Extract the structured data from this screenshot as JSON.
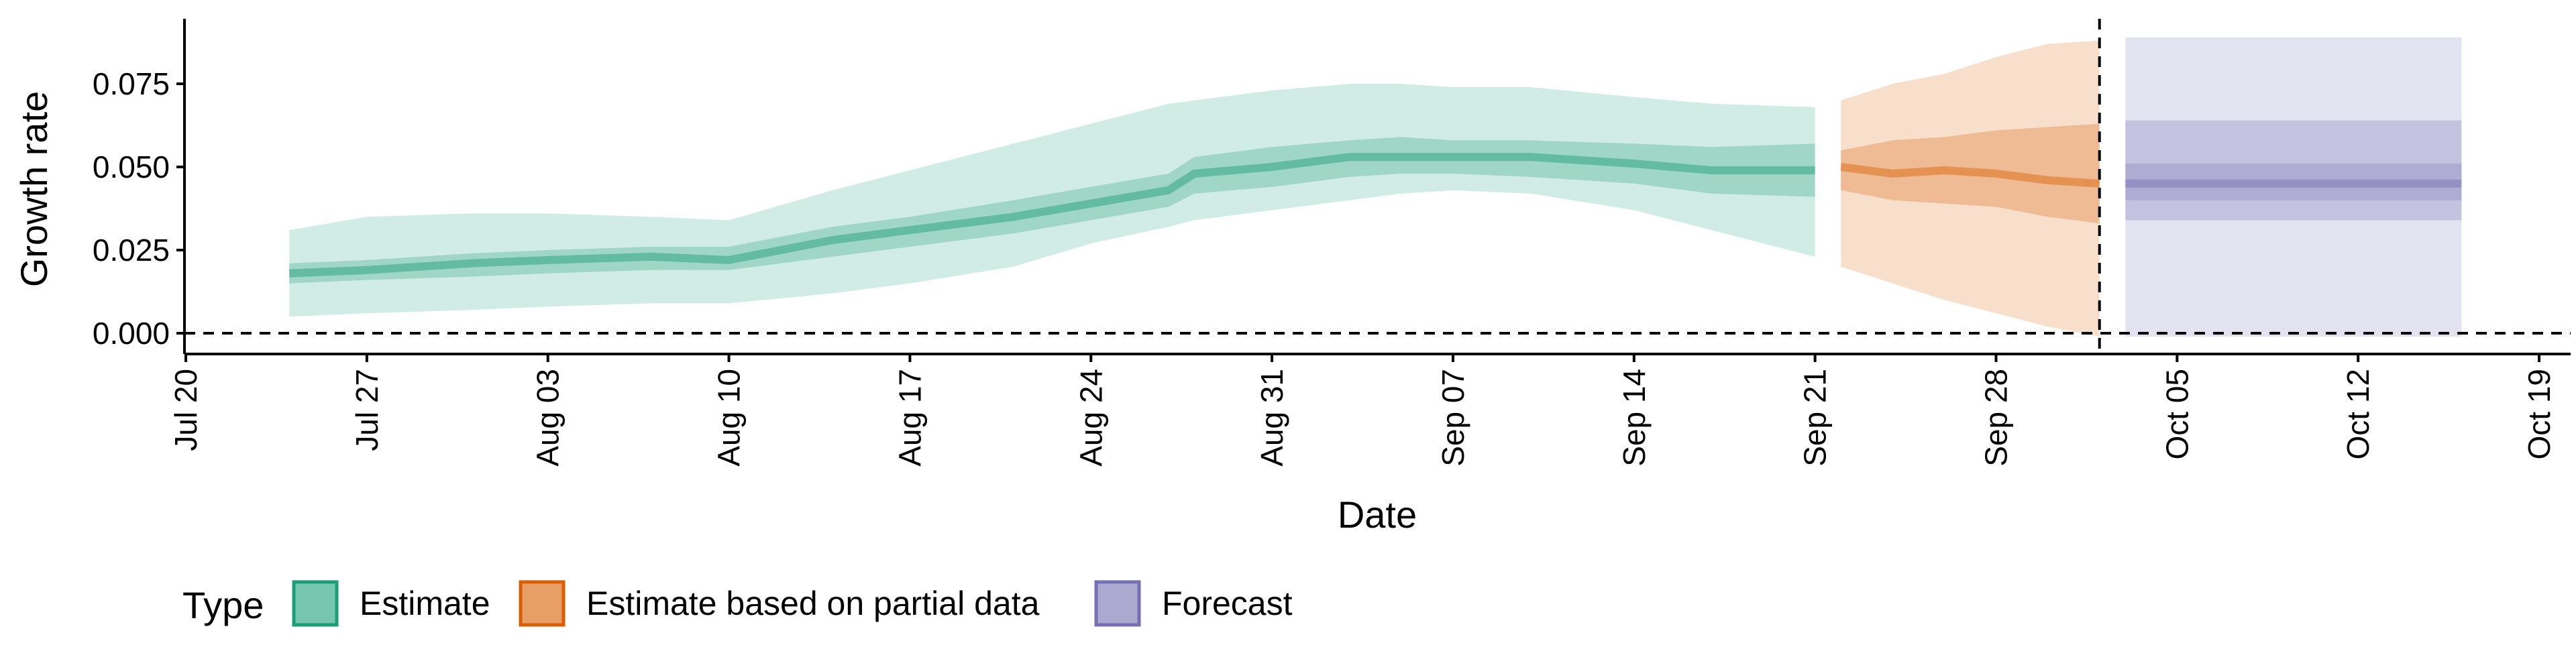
{
  "chart_data": {
    "type": "area",
    "title": "",
    "xlabel": "Date",
    "ylabel": "Growth rate",
    "x_tick_labels": [
      "Jul 20",
      "Jul 27",
      "Aug 03",
      "Aug 10",
      "Aug 17",
      "Aug 24",
      "Aug 31",
      "Sep 07",
      "Sep 14",
      "Sep 21",
      "Sep 28",
      "Oct 05",
      "Oct 12",
      "Oct 19"
    ],
    "x_ticks": [
      "2020-07-20",
      "2020-07-27",
      "2020-08-03",
      "2020-08-10",
      "2020-08-17",
      "2020-08-24",
      "2020-08-31",
      "2020-09-07",
      "2020-09-14",
      "2020-09-21",
      "2020-09-28",
      "2020-10-05",
      "2020-10-12",
      "2020-10-19"
    ],
    "y_ticks": [
      0.0,
      0.025,
      0.05,
      0.075
    ],
    "y_tick_labels": [
      "0.000",
      "0.025",
      "0.050",
      "0.075"
    ],
    "xlim": [
      "2020-07-20",
      "2020-10-20"
    ],
    "ylim": [
      -0.007,
      0.097
    ],
    "grid": false,
    "reference_lines": [
      {
        "axis": "y",
        "value": 0,
        "style": "dashed"
      },
      {
        "axis": "x",
        "value": "2020-10-02",
        "style": "dashed"
      }
    ],
    "legend": {
      "title": "Type",
      "position": "bottom",
      "entries": [
        {
          "label": "Estimate",
          "color": "#1b9e77"
        },
        {
          "label": "Estimate based on partial data",
          "color": "#d95f02"
        },
        {
          "label": "Forecast",
          "color": "#7570b3"
        }
      ]
    },
    "series": [
      {
        "type_key": "Estimate",
        "color": "#1b9e77",
        "dates": [
          "2020-07-24",
          "2020-07-27",
          "2020-07-31",
          "2020-08-03",
          "2020-08-07",
          "2020-08-10",
          "2020-08-14",
          "2020-08-17",
          "2020-08-21",
          "2020-08-24",
          "2020-08-27",
          "2020-08-28",
          "2020-08-31",
          "2020-09-03",
          "2020-09-05",
          "2020-09-07",
          "2020-09-10",
          "2020-09-14",
          "2020-09-17",
          "2020-09-21"
        ],
        "median": [
          0.018,
          0.019,
          0.021,
          0.022,
          0.023,
          0.022,
          0.028,
          0.031,
          0.035,
          0.039,
          0.043,
          0.048,
          0.05,
          0.053,
          0.053,
          0.053,
          0.053,
          0.051,
          0.049,
          0.049
        ],
        "inner": [
          [
            0.015,
            0.021
          ],
          [
            0.016,
            0.022
          ],
          [
            0.017,
            0.024
          ],
          [
            0.018,
            0.025
          ],
          [
            0.019,
            0.026
          ],
          [
            0.019,
            0.026
          ],
          [
            0.023,
            0.032
          ],
          [
            0.026,
            0.035
          ],
          [
            0.03,
            0.04
          ],
          [
            0.034,
            0.044
          ],
          [
            0.038,
            0.048
          ],
          [
            0.042,
            0.053
          ],
          [
            0.044,
            0.056
          ],
          [
            0.047,
            0.058
          ],
          [
            0.048,
            0.059
          ],
          [
            0.048,
            0.058
          ],
          [
            0.047,
            0.058
          ],
          [
            0.045,
            0.057
          ],
          [
            0.042,
            0.056
          ],
          [
            0.041,
            0.057
          ]
        ],
        "outer": [
          [
            0.005,
            0.031
          ],
          [
            0.006,
            0.035
          ],
          [
            0.007,
            0.036
          ],
          [
            0.008,
            0.036
          ],
          [
            0.009,
            0.035
          ],
          [
            0.009,
            0.034
          ],
          [
            0.012,
            0.043
          ],
          [
            0.015,
            0.049
          ],
          [
            0.02,
            0.057
          ],
          [
            0.027,
            0.063
          ],
          [
            0.032,
            0.069
          ],
          [
            0.034,
            0.07
          ],
          [
            0.037,
            0.073
          ],
          [
            0.04,
            0.075
          ],
          [
            0.042,
            0.075
          ],
          [
            0.043,
            0.074
          ],
          [
            0.042,
            0.074
          ],
          [
            0.037,
            0.071
          ],
          [
            0.031,
            0.069
          ],
          [
            0.023,
            0.068
          ]
        ]
      },
      {
        "type_key": "Estimate based on partial data",
        "color": "#d95f02",
        "dates": [
          "2020-09-22",
          "2020-09-24",
          "2020-09-26",
          "2020-09-28",
          "2020-09-30",
          "2020-10-02"
        ],
        "median": [
          0.05,
          0.048,
          0.049,
          0.048,
          0.046,
          0.045
        ],
        "inner": [
          [
            0.043,
            0.055
          ],
          [
            0.04,
            0.058
          ],
          [
            0.039,
            0.059
          ],
          [
            0.038,
            0.061
          ],
          [
            0.035,
            0.062
          ],
          [
            0.033,
            0.063
          ]
        ],
        "outer": [
          [
            0.02,
            0.07
          ],
          [
            0.015,
            0.075
          ],
          [
            0.01,
            0.078
          ],
          [
            0.006,
            0.083
          ],
          [
            0.002,
            0.087
          ],
          [
            -0.001,
            0.088
          ]
        ]
      },
      {
        "type_key": "Forecast",
        "color": "#7570b3",
        "dates": [
          "2020-10-03",
          "2020-10-16"
        ],
        "median": [
          0.045,
          0.045
        ],
        "inner": [
          [
            0.04,
            0.051
          ],
          [
            0.04,
            0.051
          ]
        ],
        "outer": [
          [
            -0.001,
            0.089
          ],
          [
            -0.001,
            0.089
          ]
        ],
        "mid": [
          [
            0.034,
            0.064
          ],
          [
            0.034,
            0.064
          ]
        ]
      }
    ]
  }
}
